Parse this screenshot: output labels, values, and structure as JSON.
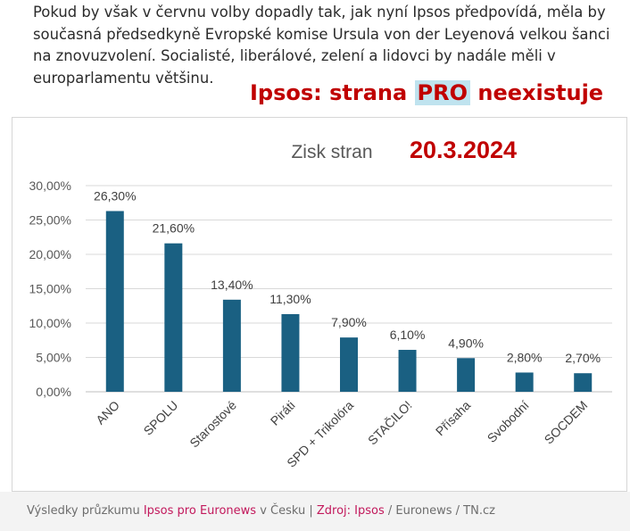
{
  "article": {
    "text": "Pokud by však v červnu volby dopadly tak, jak nyní Ipsos předpovídá, měla by současná předsedkyně Evropské komise Ursula von der Leyenová velkou šanci na znovuzvolení. Socialisté, liberálové, zelení a lidovci by nadále měli v europarlamentu většinu."
  },
  "overlay": {
    "headline_pre": "Ipsos: strana ",
    "headline_pro": "PRO",
    "headline_post": " neexistuje",
    "date": "20.3.2024"
  },
  "colors": {
    "bar": "#1a6082",
    "overlay_red": "#c00000",
    "footer_highlight": "#c2185b"
  },
  "chart_data": {
    "type": "bar",
    "title": "Zisk stran",
    "categories": [
      "ANO",
      "SPOLU",
      "Starostové",
      "Piráti",
      "SPD + Trikolóra",
      "STAČILO!",
      "Přísaha",
      "Svobodní",
      "SOCDEM"
    ],
    "values": [
      26.3,
      21.6,
      13.4,
      11.3,
      7.9,
      6.1,
      4.9,
      2.8,
      2.7
    ],
    "value_labels": [
      "26,30%",
      "21,60%",
      "13,40%",
      "11,30%",
      "7,90%",
      "6,10%",
      "4,90%",
      "2,80%",
      "2,70%"
    ],
    "yticks": [
      0,
      5,
      10,
      15,
      20,
      25,
      30
    ],
    "ytick_labels": [
      "0,00%",
      "5,00%",
      "10,00%",
      "15,00%",
      "20,00%",
      "25,00%",
      "30,00%"
    ],
    "ylim": [
      0,
      30
    ],
    "xlabel": "",
    "ylabel": "",
    "grid": true,
    "legend": "none"
  },
  "footer": {
    "part1": "Výsledky průzkumu ",
    "part2": "Ipsos pro Euronews",
    "part3": " v Česku | ",
    "part4": "Zdroj: Ipsos",
    "part5": " / Euronews / TN.cz"
  }
}
